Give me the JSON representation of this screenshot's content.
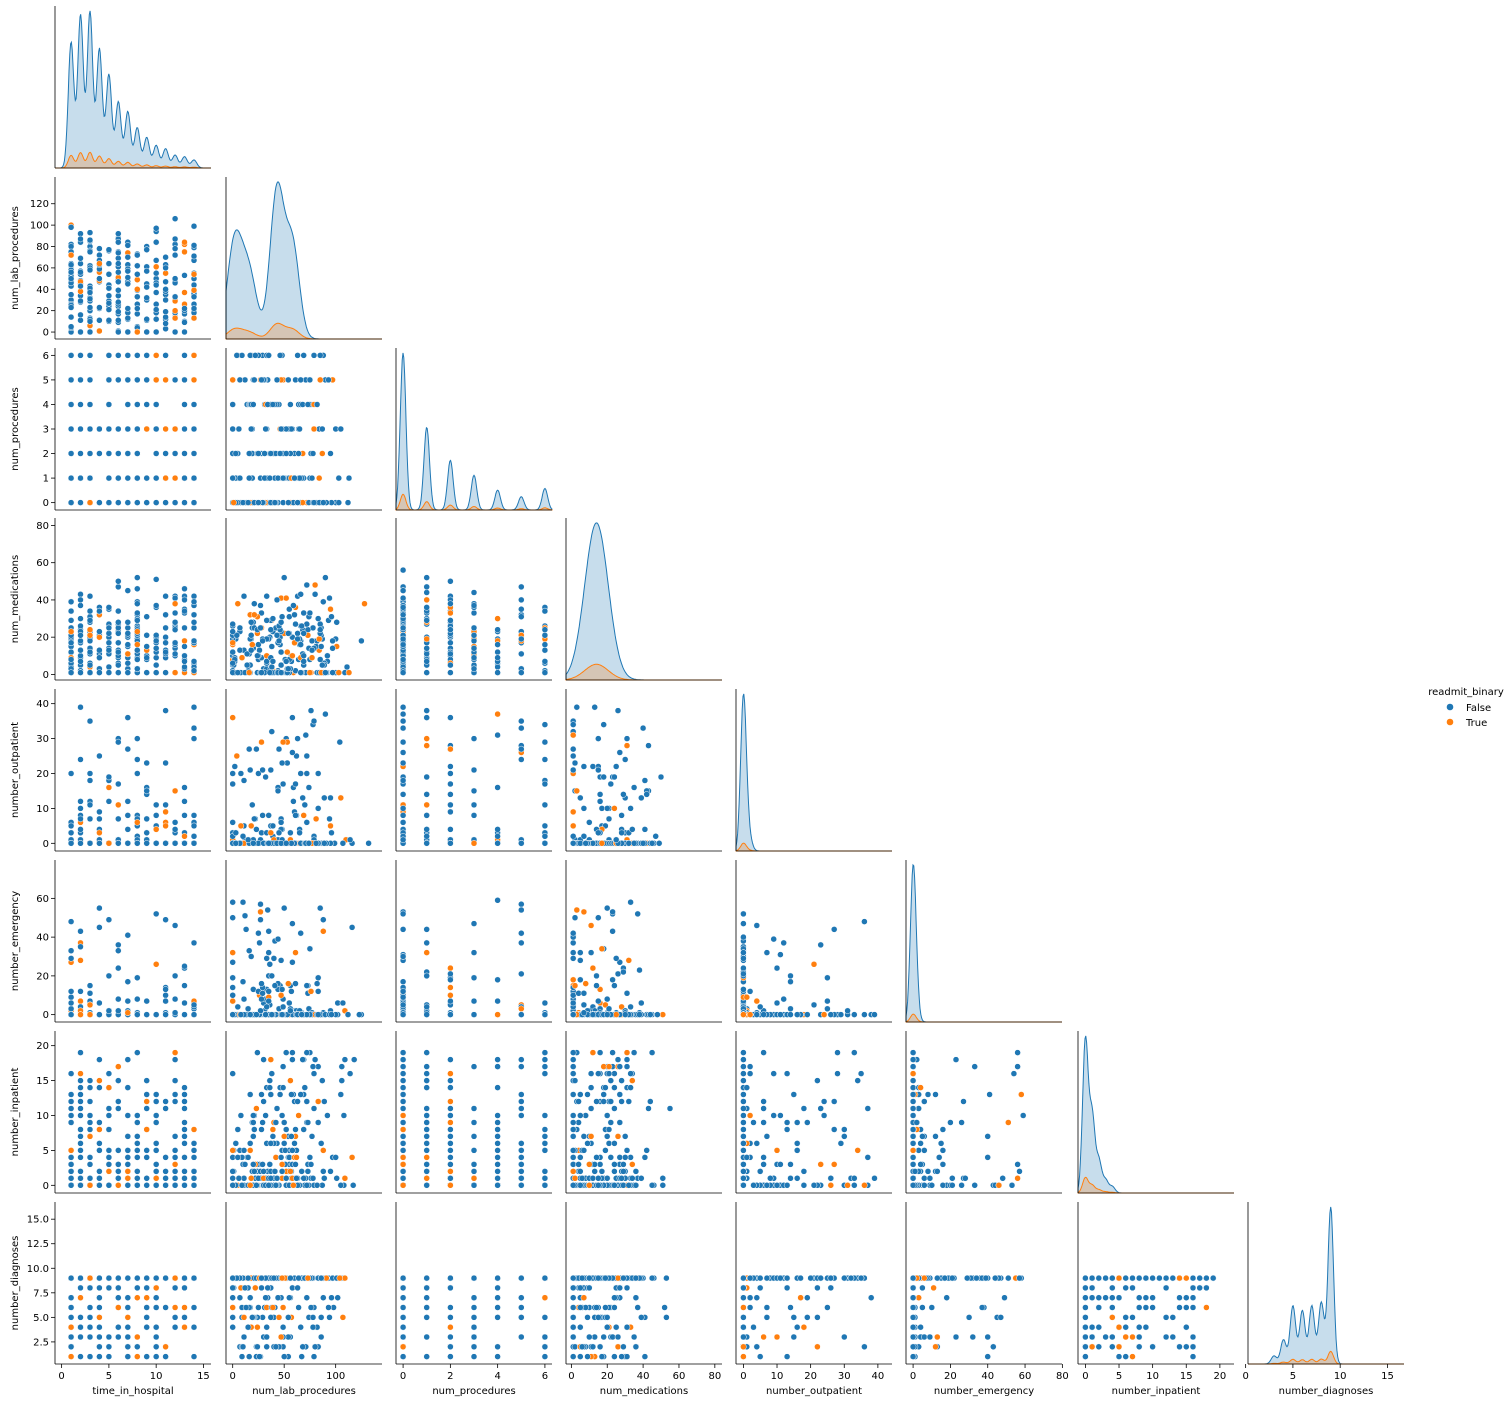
{
  "chart_data": {
    "type": "scatter",
    "kind": "pairplot-lower-corner",
    "hue": "readmit_binary",
    "legend": {
      "title": "readmit_binary",
      "placement": "right",
      "entries": [
        {
          "label": "False",
          "color": "#1f77b4"
        },
        {
          "label": "True",
          "color": "#ff7f0e"
        }
      ]
    },
    "colors": {
      "False": "#1f77b4",
      "True": "#ff7f0e"
    },
    "variables": [
      {
        "name": "time_in_hospital",
        "lim": [
          -0.7,
          15.8
        ],
        "ticks": [
          0,
          5,
          10,
          15
        ],
        "tick_labels": [
          "0",
          "5",
          "10",
          "15"
        ]
      },
      {
        "name": "num_lab_procedures",
        "lim": [
          -6.5,
          145
        ],
        "ticks": [
          0,
          20,
          40,
          60,
          80,
          100,
          120
        ],
        "tick_labels": [
          "0",
          "20",
          "40",
          "60",
          "80",
          "100",
          "120"
        ],
        "xticks": [
          0,
          50,
          100
        ],
        "xtick_labels": [
          "0",
          "50",
          "100"
        ]
      },
      {
        "name": "num_procedures",
        "lim": [
          -0.3,
          6.3
        ],
        "ticks": [
          0,
          1,
          2,
          3,
          4,
          5,
          6
        ],
        "tick_labels": [
          "0",
          "1",
          "2",
          "3",
          "4",
          "5",
          "6"
        ],
        "xticks": [
          0,
          2,
          4,
          6
        ],
        "xtick_labels": [
          "0",
          "2",
          "4",
          "6"
        ]
      },
      {
        "name": "num_medications",
        "lim": [
          -3,
          84
        ],
        "ticks": [
          0,
          20,
          40,
          60,
          80
        ],
        "tick_labels": [
          "0",
          "20",
          "40",
          "60",
          "80"
        ]
      },
      {
        "name": "number_outpatient",
        "lim": [
          -2.2,
          44.2
        ],
        "ticks": [
          0,
          10,
          20,
          30,
          40
        ],
        "tick_labels": [
          "0",
          "10",
          "20",
          "30",
          "40"
        ]
      },
      {
        "name": "number_emergency",
        "lim": [
          -3.8,
          79.8
        ],
        "ticks": [
          0,
          20,
          40,
          60
        ],
        "tick_labels": [
          "0",
          "20",
          "40",
          "60"
        ],
        "xticks": [
          0,
          20,
          40,
          60,
          80
        ],
        "xtick_labels": [
          "0",
          "20",
          "40",
          "60",
          "80"
        ]
      },
      {
        "name": "number_inpatient",
        "lim": [
          -1.1,
          22.1
        ],
        "ticks": [
          0,
          5,
          10,
          15,
          20
        ],
        "tick_labels": [
          "0",
          "5",
          "10",
          "15",
          "20"
        ]
      },
      {
        "name": "number_diagnoses",
        "lim": [
          0.25,
          16.75
        ],
        "ticks": [
          2.5,
          5.0,
          7.5,
          10.0,
          12.5,
          15.0
        ],
        "tick_labels": [
          "2.5",
          "5.0",
          "7.5",
          "10.0",
          "12.5",
          "15.0"
        ],
        "xticks": [
          0,
          5,
          10,
          15
        ],
        "xtick_labels": [
          "0",
          "5",
          "10",
          "15"
        ]
      }
    ],
    "diagonal_kde": {
      "time_in_hospital": {
        "peaks_false": [
          [
            1,
            0.78
          ],
          [
            2,
            0.95
          ],
          [
            3,
            0.97
          ],
          [
            4,
            0.74
          ],
          [
            5,
            0.58
          ],
          [
            6,
            0.41
          ],
          [
            7,
            0.35
          ],
          [
            8,
            0.25
          ],
          [
            9,
            0.19
          ],
          [
            10,
            0.14
          ],
          [
            11,
            0.12
          ],
          [
            12,
            0.08
          ],
          [
            13,
            0.07
          ],
          [
            14,
            0.05
          ]
        ],
        "true_scale": 0.1
      },
      "num_lab_procedures": {
        "peaks_false": [
          [
            1,
            0.55
          ],
          [
            10,
            0.25
          ],
          [
            18,
            0.3
          ],
          [
            43,
            0.95
          ],
          [
            58,
            0.6
          ]
        ],
        "true_scale": 0.1
      },
      "num_procedures": {
        "peaks_false": [
          [
            0,
            0.95
          ],
          [
            1,
            0.5
          ],
          [
            2,
            0.3
          ],
          [
            3,
            0.21
          ],
          [
            4,
            0.12
          ],
          [
            5,
            0.08
          ],
          [
            6,
            0.13
          ]
        ],
        "true_scale": 0.1
      },
      "num_medications": {
        "peaks_false": [
          [
            14,
            0.95
          ]
        ],
        "true_scale": 0.1
      },
      "number_outpatient": {
        "peaks_false": [
          [
            0,
            0.97
          ],
          [
            1,
            0.1
          ],
          [
            2,
            0.05
          ]
        ],
        "true_scale": 0.05
      },
      "number_emergency": {
        "peaks_false": [
          [
            0,
            0.97
          ],
          [
            1,
            0.12
          ],
          [
            2,
            0.05
          ]
        ],
        "true_scale": 0.05
      },
      "number_inpatient": {
        "peaks_false": [
          [
            0,
            0.96
          ],
          [
            1,
            0.48
          ],
          [
            2,
            0.2
          ],
          [
            3,
            0.08
          ],
          [
            4,
            0.04
          ]
        ],
        "true_scale": 0.1
      },
      "number_diagnoses": {
        "peaks_false": [
          [
            3,
            0.05
          ],
          [
            4,
            0.15
          ],
          [
            5,
            0.36
          ],
          [
            6,
            0.33
          ],
          [
            7,
            0.36
          ],
          [
            8,
            0.38
          ],
          [
            9,
            0.97
          ]
        ],
        "true_scale": 0.08
      }
    }
  }
}
